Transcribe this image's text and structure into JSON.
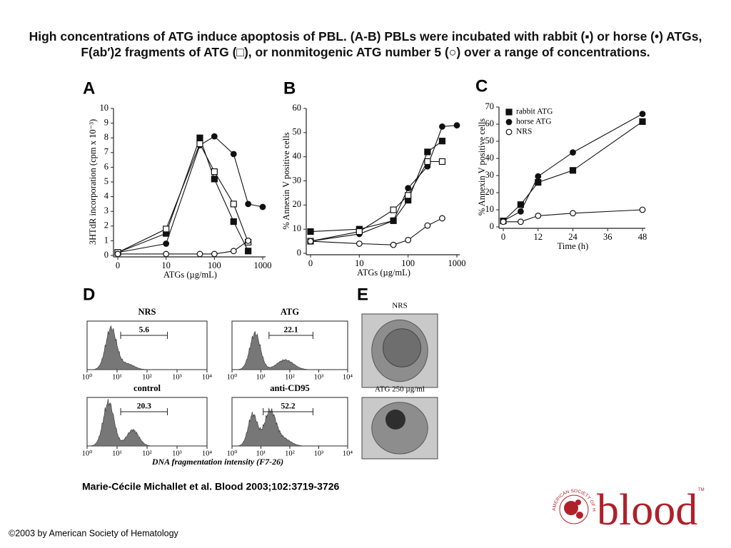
{
  "slide": {
    "title": "High concentrations of ATG induce apoptosis of PBL. (A-B) PBLs were incubated with rabbit (▪) or horse (•) ATGs, F(ab′)2 fragments of ATG (□), or nonmitogenic ATG number 5 (○) over a range of concentrations.",
    "citation": "Marie-Cécile Michallet et al. Blood 2003;102:3719-3726",
    "copyright": "©2003 by American Society of Hematology",
    "logo": {
      "text": "blood",
      "ring_text": "AMERICAN SOCIETY OF HEMATOLOGY",
      "mark": "TM"
    }
  },
  "chart_data": [
    {
      "type": "line",
      "panel": "A",
      "xlabel": "ATGs (µg/mL)",
      "ylabel": "3HTdR incorporation (cpm x 10⁻³)",
      "xscale": "log",
      "x": [
        0,
        10,
        50,
        100,
        250,
        500,
        1000
      ],
      "xlim": [
        0,
        1000
      ],
      "xticks": [
        0,
        10,
        100,
        1000
      ],
      "ylim": [
        0,
        10
      ],
      "yticks": [
        0,
        1,
        2,
        3,
        4,
        5,
        6,
        7,
        8,
        9,
        10
      ],
      "series": [
        {
          "marker": "square",
          "filled": true,
          "color": "#111111",
          "values": [
            0.2,
            1.5,
            8.0,
            5.2,
            2.3,
            0.3,
            null
          ]
        },
        {
          "marker": "circle",
          "filled": true,
          "color": "#111111",
          "values": [
            0.2,
            0.8,
            7.5,
            8.1,
            6.9,
            3.5,
            3.3
          ]
        },
        {
          "marker": "square",
          "filled": false,
          "color": "#111111",
          "values": [
            0.2,
            1.8,
            7.6,
            5.7,
            3.5,
            0.9,
            null
          ]
        },
        {
          "marker": "circle",
          "filled": false,
          "color": "#111111",
          "values": [
            0.1,
            0.1,
            0.1,
            0.1,
            0.3,
            1.0,
            null
          ]
        }
      ]
    },
    {
      "type": "line",
      "panel": "B",
      "xlabel": "ATGs (µg/mL)",
      "ylabel": "% Annexin V positive cells",
      "xscale": "log",
      "x": [
        0,
        10,
        50,
        100,
        250,
        500,
        1000
      ],
      "xlim": [
        0,
        1000
      ],
      "xticks": [
        0,
        10,
        100,
        1000
      ],
      "ylim": [
        0,
        60
      ],
      "yticks": [
        0,
        10,
        20,
        30,
        40,
        50,
        60
      ],
      "series": [
        {
          "marker": "square",
          "filled": true,
          "color": "#111111",
          "values": [
            9,
            10,
            13.5,
            22,
            42,
            46.5,
            null
          ]
        },
        {
          "marker": "circle",
          "filled": true,
          "color": "#111111",
          "values": [
            5,
            8,
            13.5,
            27,
            36,
            52.5,
            53
          ]
        },
        {
          "marker": "square",
          "filled": false,
          "color": "#111111",
          "values": [
            5,
            9,
            18,
            24,
            38,
            38,
            null
          ]
        },
        {
          "marker": "circle",
          "filled": false,
          "color": "#111111",
          "values": [
            5,
            4,
            3.5,
            5.5,
            11.5,
            14.5,
            null
          ]
        }
      ]
    },
    {
      "type": "line",
      "panel": "C",
      "xlabel": "Time (h)",
      "ylabel": "% Annexin V positive cells",
      "x": [
        0,
        6,
        12,
        24,
        48
      ],
      "xlim": [
        0,
        48
      ],
      "xticks": [
        0,
        12,
        24,
        36,
        48
      ],
      "ylim": [
        0,
        70
      ],
      "yticks": [
        0,
        10,
        20,
        30,
        40,
        50,
        60,
        70
      ],
      "legend": "top-left",
      "series": [
        {
          "name": "rabbit ATG",
          "marker": "square",
          "filled": true,
          "color": "#111111",
          "values": [
            3.5,
            13,
            26,
            33,
            61.5
          ]
        },
        {
          "name": "horse ATG",
          "marker": "circle",
          "filled": true,
          "color": "#111111",
          "values": [
            3.5,
            9,
            29.5,
            43.5,
            66
          ]
        },
        {
          "name": "NRS",
          "marker": "circle",
          "filled": false,
          "color": "#111111",
          "values": [
            3,
            3,
            6.5,
            8,
            10
          ]
        }
      ]
    }
  ],
  "panel_d": {
    "panel": "D",
    "xlabel": "DNA fragmentation intensity (F7-26)",
    "xticks": [
      {
        "value": 1,
        "label": "10⁰"
      },
      {
        "value": 10,
        "label": "10¹"
      },
      {
        "value": 100,
        "label": "10²"
      },
      {
        "value": 1000,
        "label": "10³"
      },
      {
        "value": 10000,
        "label": "10⁴"
      }
    ],
    "plots": [
      {
        "title": "NRS",
        "gate_value": 5.6
      },
      {
        "title": "ATG",
        "gate_value": 22.1
      },
      {
        "title": "control",
        "gate_value": 20.3
      },
      {
        "title": "anti-CD95",
        "gate_value": 52.2
      }
    ]
  },
  "panel_e": {
    "panel": "E",
    "images": [
      {
        "label": "NRS"
      },
      {
        "label": "ATG 250 µg/ml"
      }
    ]
  }
}
